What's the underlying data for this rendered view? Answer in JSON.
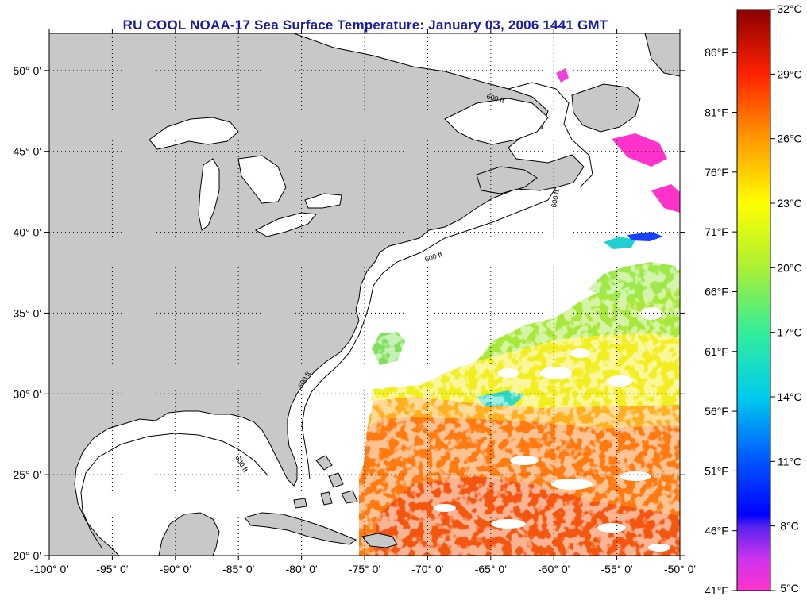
{
  "title": "RU COOL  NOAA-17  Sea Surface Temperature:  January 03, 2006 1441 GMT",
  "map": {
    "lon_range": [
      -100,
      -50
    ],
    "lat_range": [
      20,
      52.3
    ],
    "lon_ticks": [
      {
        "value": -100,
        "label": "-100° 0'"
      },
      {
        "value": -95,
        "label": "-95° 0'"
      },
      {
        "value": -90,
        "label": "-90° 0'"
      },
      {
        "value": -85,
        "label": "-85° 0'"
      },
      {
        "value": -80,
        "label": "-80° 0'"
      },
      {
        "value": -75,
        "label": "-75° 0'"
      },
      {
        "value": -70,
        "label": "-70° 0'"
      },
      {
        "value": -65,
        "label": "-65° 0'"
      },
      {
        "value": -60,
        "label": "-60° 0'"
      },
      {
        "value": -55,
        "label": "-55° 0'"
      },
      {
        "value": -50,
        "label": "-50° 0'"
      }
    ],
    "lat_ticks": [
      {
        "value": 20,
        "label": "20° 0'"
      },
      {
        "value": 25,
        "label": "25° 0'"
      },
      {
        "value": 30,
        "label": "30° 0'"
      },
      {
        "value": 35,
        "label": "35° 0'"
      },
      {
        "value": 40,
        "label": "40° 0'"
      },
      {
        "value": 45,
        "label": "45° 0'"
      },
      {
        "value": 50,
        "label": "50° 0'"
      }
    ],
    "isobath_label": "600 ft",
    "land_color": "#c8c8c8",
    "coast_color": "#000000",
    "ocean_color": "#ffffff"
  },
  "colorbar": {
    "celsius_range": [
      5,
      32
    ],
    "celsius_labels": [
      "32°C",
      "29°C",
      "26°C",
      "23°C",
      "20°C",
      "17°C",
      "14°C",
      "11°C",
      "8°C",
      "5°C"
    ],
    "fahrenheit_labels": [
      "86°F",
      "81°F",
      "76°F",
      "71°F",
      "66°F",
      "61°F",
      "56°F",
      "51°F",
      "46°F",
      "41°F"
    ],
    "stops": [
      {
        "t": 5,
        "color": "#ff33cc"
      },
      {
        "t": 6.5,
        "color": "#cc33ee"
      },
      {
        "t": 8,
        "color": "#5522ee"
      },
      {
        "t": 8.5,
        "color": "#0000ff"
      },
      {
        "t": 11,
        "color": "#0055ff"
      },
      {
        "t": 14,
        "color": "#00ccee"
      },
      {
        "t": 17,
        "color": "#33ee99"
      },
      {
        "t": 20,
        "color": "#aaf033"
      },
      {
        "t": 23,
        "color": "#ffff00"
      },
      {
        "t": 26,
        "color": "#ff9900"
      },
      {
        "t": 29,
        "color": "#ff2200"
      },
      {
        "t": 32,
        "color": "#8b0000"
      }
    ]
  }
}
